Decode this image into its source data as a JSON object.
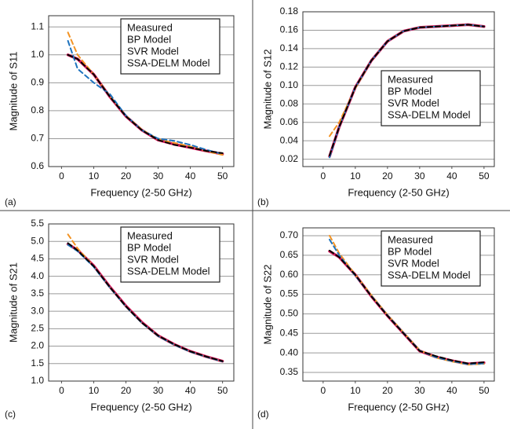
{
  "chart_data": [
    {
      "type": "line",
      "label": "(a)",
      "xlabel": "Frequency (2-50 GHz)",
      "ylabel": "Magnitude of S11",
      "x": [
        2,
        5,
        10,
        15,
        20,
        25,
        30,
        35,
        40,
        45,
        50
      ],
      "xlim": [
        -4,
        53.5
      ],
      "xticks": [
        0,
        10,
        20,
        30,
        40,
        50
      ],
      "ylim": [
        0.6,
        1.14
      ],
      "yticks": [
        0.6,
        0.7,
        0.8,
        0.9,
        {
          "value": 1,
          "label": "1.0"
        },
        1.1
      ],
      "grid": true,
      "legend": "upper right",
      "series": [
        {
          "name": "Measured",
          "color": "#d6185a",
          "dashed": false,
          "values": [
            1.0,
            0.985,
            0.93,
            0.85,
            0.78,
            0.73,
            0.695,
            0.68,
            0.668,
            0.656,
            0.645
          ]
        },
        {
          "name": "BP Model",
          "color": "#f39323",
          "dashed": true,
          "values": [
            1.08,
            1.0,
            0.93,
            0.852,
            0.782,
            0.732,
            0.698,
            0.685,
            0.672,
            0.655,
            0.642
          ]
        },
        {
          "name": "SVR Model",
          "color": "#1e73be",
          "dashed": true,
          "values": [
            1.05,
            0.95,
            0.9,
            0.86,
            0.782,
            0.73,
            0.7,
            0.692,
            0.678,
            0.66,
            0.645
          ]
        },
        {
          "name": "SSA-DELM Model",
          "color": "#000000",
          "dashed": true,
          "values": [
            1.0,
            0.985,
            0.93,
            0.85,
            0.78,
            0.73,
            0.695,
            0.678,
            0.668,
            0.656,
            0.648
          ]
        }
      ]
    },
    {
      "type": "line",
      "label": "(b)",
      "xlabel": "Frequency (2-50 GHz)",
      "ylabel": "Magnitude of S12",
      "x": [
        2,
        5,
        10,
        15,
        20,
        25,
        30,
        35,
        40,
        45,
        50
      ],
      "xlim": [
        -6.3,
        53.2
      ],
      "xticks": [
        0,
        10,
        20,
        30,
        40,
        50
      ],
      "ylim": [
        0.012,
        0.18
      ],
      "yticks": [
        0.02,
        0.04,
        0.06,
        0.08,
        {
          "value": 0.1,
          "label": "0.10"
        },
        0.12,
        0.14,
        0.16,
        0.18
      ],
      "grid": true,
      "legend": "lower right",
      "series": [
        {
          "name": "Measured",
          "color": "#d6185a",
          "dashed": false,
          "values": [
            0.023,
            0.055,
            0.098,
            0.127,
            0.148,
            0.159,
            0.163,
            0.164,
            0.165,
            0.166,
            0.164
          ]
        },
        {
          "name": "BP Model",
          "color": "#f39323",
          "dashed": true,
          "values": [
            0.045,
            0.06,
            0.097,
            0.127,
            0.148,
            0.159,
            0.163,
            0.164,
            0.165,
            0.166,
            0.164
          ]
        },
        {
          "name": "SVR Model",
          "color": "#1e73be",
          "dashed": true,
          "values": [
            0.022,
            0.055,
            0.098,
            0.127,
            0.148,
            0.159,
            0.163,
            0.164,
            0.165,
            0.166,
            0.164
          ]
        },
        {
          "name": "SSA-DELM Model",
          "color": "#000000",
          "dashed": true,
          "values": [
            0.024,
            0.055,
            0.098,
            0.127,
            0.148,
            0.159,
            0.163,
            0.164,
            0.165,
            0.166,
            0.164
          ]
        }
      ]
    },
    {
      "type": "line",
      "label": "(c)",
      "xlabel": "Frequency (2-50 GHz)",
      "ylabel": "Magnitude of S21",
      "x": [
        2,
        5,
        10,
        15,
        20,
        25,
        30,
        35,
        40,
        45,
        50
      ],
      "xlim": [
        -4,
        53.5
      ],
      "xticks": [
        0,
        10,
        20,
        30,
        40,
        50
      ],
      "ylim": [
        1.0,
        5.5
      ],
      "yticks": [
        {
          "value": 1,
          "label": "1.0"
        },
        1.5,
        {
          "value": 2,
          "label": "2.0"
        },
        2.5,
        {
          "value": 3,
          "label": "3.0"
        },
        3.5,
        {
          "value": 4,
          "label": "4.0"
        },
        4.5,
        {
          "value": 5,
          "label": "5.0"
        },
        5.5
      ],
      "grid": true,
      "legend": "upper right",
      "series": [
        {
          "name": "Measured",
          "color": "#d6185a",
          "dashed": false,
          "values": [
            4.92,
            4.75,
            4.3,
            3.7,
            3.15,
            2.68,
            2.3,
            2.05,
            1.85,
            1.7,
            1.57
          ]
        },
        {
          "name": "BP Model",
          "color": "#f39323",
          "dashed": true,
          "values": [
            5.2,
            4.8,
            4.28,
            3.68,
            3.13,
            2.66,
            2.29,
            2.04,
            1.84,
            1.69,
            1.56
          ]
        },
        {
          "name": "SVR Model",
          "color": "#1e73be",
          "dashed": true,
          "values": [
            4.9,
            4.72,
            4.27,
            3.68,
            3.13,
            2.66,
            2.29,
            2.04,
            1.84,
            1.69,
            1.56
          ]
        },
        {
          "name": "SSA-DELM Model",
          "color": "#000000",
          "dashed": true,
          "values": [
            4.95,
            4.74,
            4.29,
            3.69,
            3.14,
            2.67,
            2.3,
            2.05,
            1.85,
            1.7,
            1.57
          ]
        }
      ]
    },
    {
      "type": "line",
      "label": "(d)",
      "xlabel": "Frequency (2-50 GHz)",
      "ylabel": "Magnitude of S22",
      "x": [
        2,
        5,
        10,
        15,
        20,
        25,
        30,
        35,
        40,
        45,
        50
      ],
      "xlim": [
        -6.3,
        53.2
      ],
      "xticks": [
        0,
        10,
        20,
        30,
        40,
        50
      ],
      "ylim": [
        0.328,
        0.72
      ],
      "yticks": [
        0.35,
        {
          "value": 0.4,
          "label": "0.40"
        },
        0.45,
        {
          "value": 0.5,
          "label": "0.50"
        },
        0.55,
        {
          "value": 0.6,
          "label": "0.60"
        },
        0.65,
        {
          "value": 0.7,
          "label": "0.70"
        }
      ],
      "grid": true,
      "legend": "upper right",
      "series": [
        {
          "name": "Measured",
          "color": "#d6185a",
          "dashed": false,
          "values": [
            0.66,
            0.645,
            0.6,
            0.545,
            0.495,
            0.45,
            0.405,
            0.39,
            0.38,
            0.372,
            0.375
          ]
        },
        {
          "name": "BP Model",
          "color": "#f39323",
          "dashed": true,
          "values": [
            0.7,
            0.655,
            0.6,
            0.548,
            0.497,
            0.452,
            0.407,
            0.388,
            0.378,
            0.37,
            0.372
          ]
        },
        {
          "name": "SVR Model",
          "color": "#1e73be",
          "dashed": true,
          "values": [
            0.69,
            0.65,
            0.598,
            0.546,
            0.496,
            0.451,
            0.406,
            0.389,
            0.379,
            0.371,
            0.373
          ]
        },
        {
          "name": "SSA-DELM Model",
          "color": "#000000",
          "dashed": true,
          "values": [
            0.662,
            0.645,
            0.6,
            0.545,
            0.495,
            0.45,
            0.405,
            0.392,
            0.381,
            0.373,
            0.376
          ]
        }
      ]
    }
  ]
}
